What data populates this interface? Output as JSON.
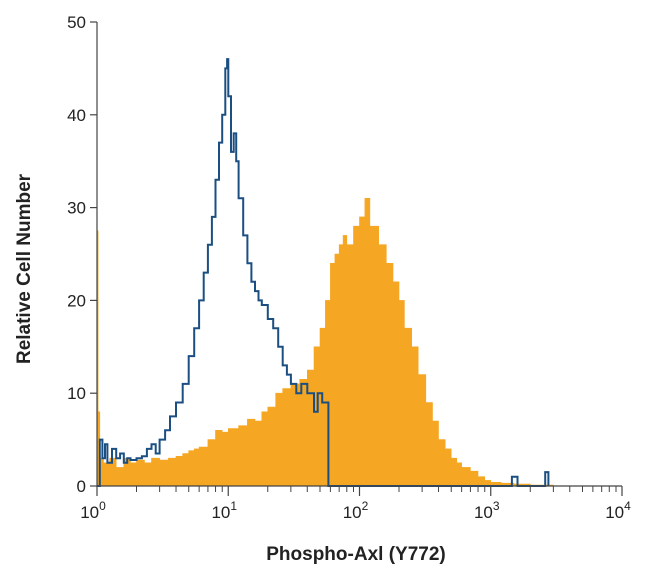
{
  "chart_data": {
    "type": "histogram",
    "title": "",
    "xlabel": "Phospho-Axl (Y772)",
    "ylabel": "Relative Cell Number",
    "x_scale": "log",
    "xlim": [
      1,
      10000
    ],
    "ylim": [
      0,
      50
    ],
    "x_ticks": [
      {
        "value": 1,
        "base": "10",
        "exp": "0"
      },
      {
        "value": 10,
        "base": "10",
        "exp": "1"
      },
      {
        "value": 100,
        "base": "10",
        "exp": "2"
      },
      {
        "value": 1000,
        "base": "10",
        "exp": "3"
      },
      {
        "value": 10000,
        "base": "10",
        "exp": "4"
      }
    ],
    "y_ticks": [
      0,
      10,
      20,
      30,
      40,
      50
    ],
    "grid": false,
    "legend": "none",
    "series": [
      {
        "style": "filled",
        "color": "#f5a623",
        "points": [
          [
            1.0,
            27.5
          ],
          [
            1.02,
            8
          ],
          [
            1.05,
            3
          ],
          [
            1.12,
            2.5
          ],
          [
            1.25,
            3
          ],
          [
            1.4,
            2
          ],
          [
            1.6,
            3
          ],
          [
            1.8,
            2.5
          ],
          [
            2.0,
            2.8
          ],
          [
            2.3,
            2.5
          ],
          [
            2.6,
            3
          ],
          [
            3.0,
            2.8
          ],
          [
            3.5,
            3
          ],
          [
            4.0,
            3.2
          ],
          [
            4.5,
            3.5
          ],
          [
            5.0,
            3.8
          ],
          [
            5.5,
            4
          ],
          [
            6.0,
            4.2
          ],
          [
            7.0,
            5
          ],
          [
            8.0,
            6
          ],
          [
            9.0,
            5.8
          ],
          [
            10,
            6.2
          ],
          [
            12,
            6.5
          ],
          [
            14,
            7.2
          ],
          [
            16,
            7
          ],
          [
            18,
            8
          ],
          [
            20,
            8.5
          ],
          [
            23,
            10
          ],
          [
            26,
            10.5
          ],
          [
            30,
            11
          ],
          [
            35,
            11.5
          ],
          [
            40,
            12.5
          ],
          [
            45,
            15
          ],
          [
            50,
            17
          ],
          [
            55,
            20
          ],
          [
            60,
            24
          ],
          [
            65,
            25
          ],
          [
            70,
            26
          ],
          [
            75,
            27
          ],
          [
            80,
            26
          ],
          [
            90,
            28
          ],
          [
            100,
            29
          ],
          [
            110,
            31
          ],
          [
            120,
            28
          ],
          [
            140,
            26
          ],
          [
            160,
            24
          ],
          [
            180,
            22
          ],
          [
            200,
            20
          ],
          [
            220,
            17
          ],
          [
            250,
            15
          ],
          [
            280,
            12
          ],
          [
            320,
            9
          ],
          [
            360,
            7
          ],
          [
            400,
            5
          ],
          [
            450,
            4
          ],
          [
            500,
            3
          ],
          [
            550,
            2.5
          ],
          [
            600,
            2
          ],
          [
            700,
            1.6
          ],
          [
            800,
            1
          ],
          [
            900,
            0.6
          ],
          [
            1000,
            0.4
          ],
          [
            1200,
            0.3
          ],
          [
            1500,
            0.2
          ],
          [
            2000,
            0.1
          ],
          [
            3000,
            0
          ]
        ]
      },
      {
        "style": "outline",
        "color": "#1b4f82",
        "points": [
          [
            1.0,
            0
          ],
          [
            1.05,
            5
          ],
          [
            1.1,
            3
          ],
          [
            1.15,
            4.5
          ],
          [
            1.2,
            2.5
          ],
          [
            1.3,
            4
          ],
          [
            1.4,
            3
          ],
          [
            1.5,
            3.5
          ],
          [
            1.6,
            2.5
          ],
          [
            1.7,
            3
          ],
          [
            1.8,
            2.8
          ],
          [
            2.0,
            3
          ],
          [
            2.2,
            3.2
          ],
          [
            2.4,
            4
          ],
          [
            2.6,
            4.5
          ],
          [
            2.8,
            3.5
          ],
          [
            3.0,
            5
          ],
          [
            3.3,
            6
          ],
          [
            3.6,
            7.5
          ],
          [
            4.0,
            9
          ],
          [
            4.5,
            11
          ],
          [
            5.0,
            14
          ],
          [
            5.5,
            17
          ],
          [
            6.0,
            20
          ],
          [
            6.5,
            23
          ],
          [
            7.0,
            26
          ],
          [
            7.5,
            29
          ],
          [
            8.0,
            33
          ],
          [
            8.5,
            37
          ],
          [
            9.0,
            40
          ],
          [
            9.5,
            45
          ],
          [
            9.8,
            46
          ],
          [
            10.0,
            42
          ],
          [
            10.5,
            36
          ],
          [
            11.0,
            38
          ],
          [
            11.5,
            35
          ],
          [
            12.0,
            31
          ],
          [
            13.0,
            27
          ],
          [
            14.0,
            24
          ],
          [
            15.0,
            22
          ],
          [
            16.0,
            21
          ],
          [
            17.0,
            20
          ],
          [
            18.0,
            19.5
          ],
          [
            20.0,
            18
          ],
          [
            22.0,
            17
          ],
          [
            24.0,
            15
          ],
          [
            26.0,
            13
          ],
          [
            28.0,
            12
          ],
          [
            30.0,
            11
          ],
          [
            33.0,
            10
          ],
          [
            36.0,
            11
          ],
          [
            40.0,
            10
          ],
          [
            45.0,
            8
          ],
          [
            48.0,
            10
          ],
          [
            52.0,
            9
          ],
          [
            58.0,
            0
          ],
          [
            1400,
            0
          ],
          [
            1450,
            1
          ],
          [
            1550,
            1
          ],
          [
            1600,
            0
          ],
          [
            2500,
            0
          ],
          [
            2600,
            1.5
          ],
          [
            2700,
            1.5
          ],
          [
            2750,
            0
          ]
        ]
      }
    ]
  }
}
